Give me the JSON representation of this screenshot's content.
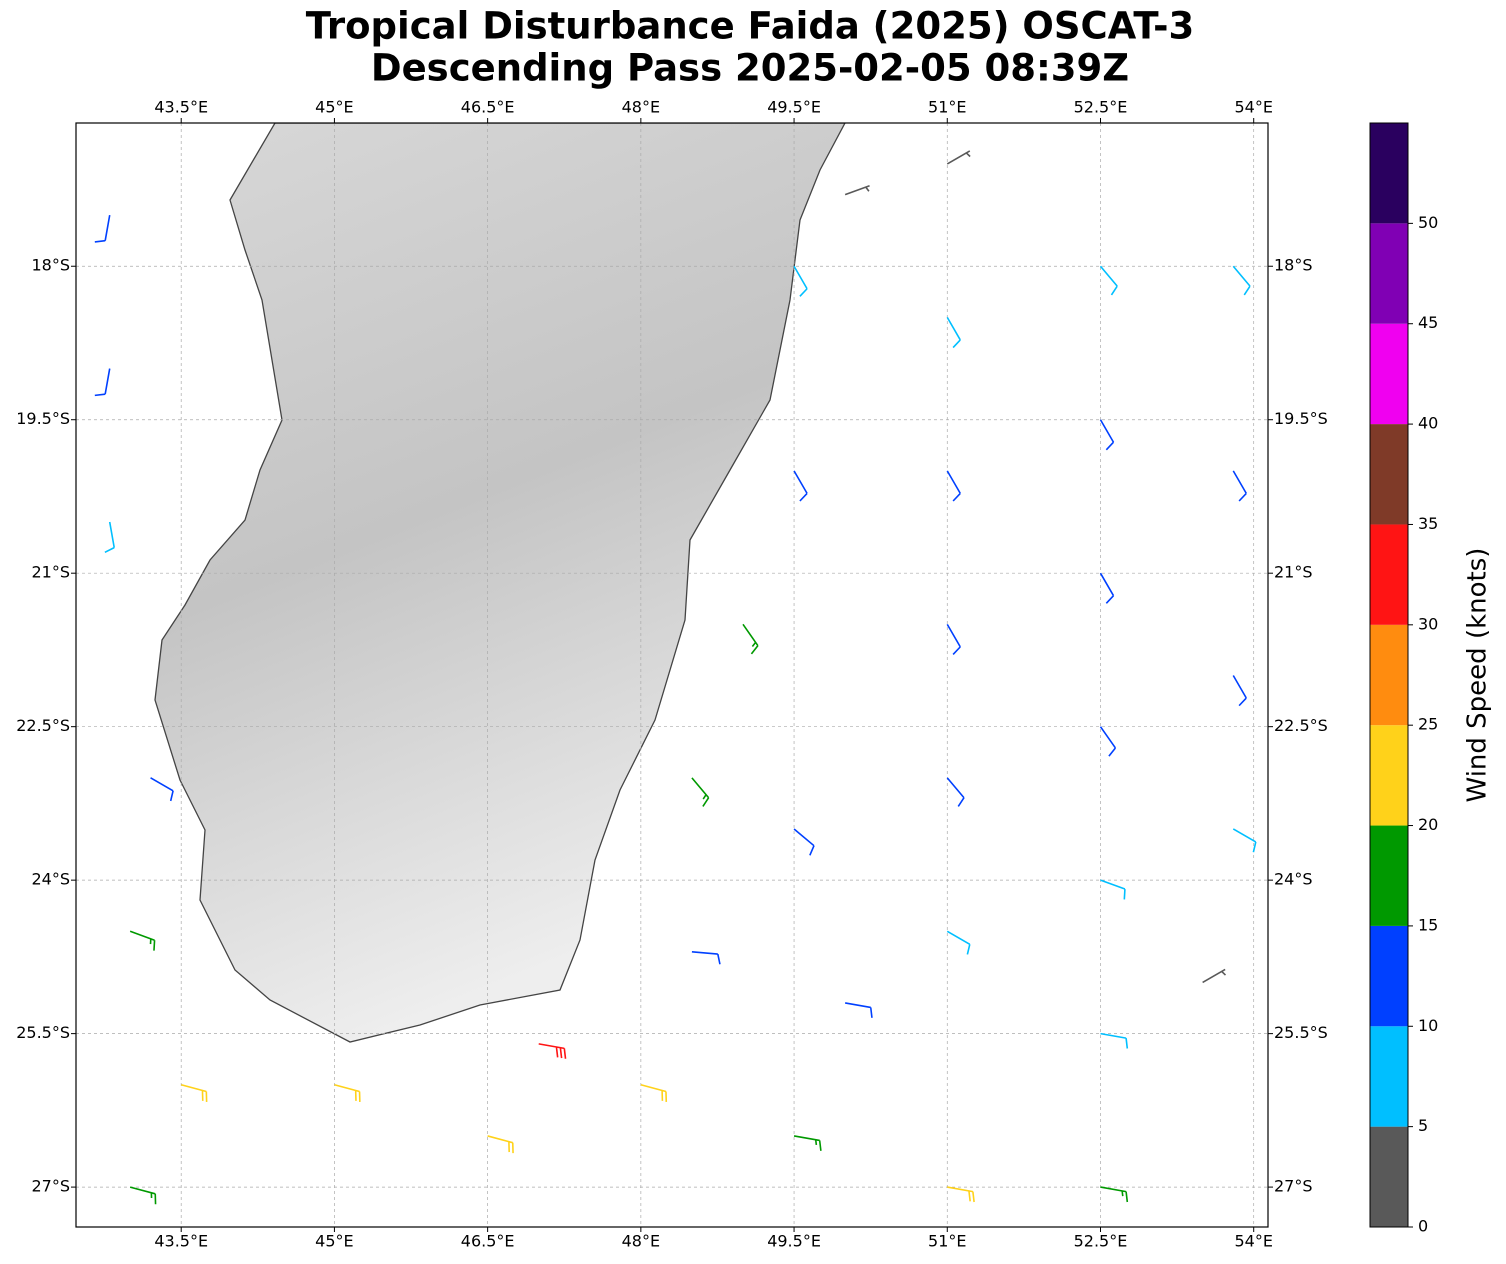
{
  "chart_data": {
    "type": "barbs",
    "title": [
      "Tropical Disturbance Faida (2025) OSCAT-3",
      "Descending Pass 2025-02-05 08:39Z"
    ],
    "xlim": [
      42.47,
      54.14
    ],
    "ylim": [
      -27.39,
      -16.6
    ],
    "xticks": [
      {
        "value": 43.5,
        "label": "43.5°E"
      },
      {
        "value": 45,
        "label": "45°E"
      },
      {
        "value": 46.5,
        "label": "46.5°E"
      },
      {
        "value": 48,
        "label": "48°E"
      },
      {
        "value": 49.5,
        "label": "49.5°E"
      },
      {
        "value": 51,
        "label": "51°E"
      },
      {
        "value": 52.5,
        "label": "52.5°E"
      },
      {
        "value": 54,
        "label": "54°E"
      }
    ],
    "yticks": [
      {
        "value": -18,
        "label": "18°S"
      },
      {
        "value": -19.5,
        "label": "19.5°S"
      },
      {
        "value": -21,
        "label": "21°S"
      },
      {
        "value": -22.5,
        "label": "22.5°S"
      },
      {
        "value": -24,
        "label": "24°S"
      },
      {
        "value": -25.5,
        "label": "25.5°S"
      },
      {
        "value": -27,
        "label": "27°S"
      }
    ],
    "grid": true,
    "colorbar": {
      "label": "Wind Speed (knots)",
      "bounds": [
        0,
        5,
        10,
        15,
        20,
        25,
        30,
        35,
        40,
        45,
        50,
        55
      ],
      "colors": [
        "#595959",
        "#00bfff",
        "#0040ff",
        "#009900",
        "#ffd21a",
        "#ff8c0f",
        "#ff1414",
        "#7f3a28",
        "#f000f0",
        "#8000b4",
        "#2a005f"
      ],
      "ticks": [
        0,
        5,
        10,
        15,
        20,
        25,
        30,
        35,
        40,
        45,
        50
      ]
    },
    "wind_barbs": [
      {
        "lon": 42.8,
        "lat": -17.5,
        "speed": 12,
        "direction": 190
      },
      {
        "lon": 42.8,
        "lat": -19,
        "speed": 12,
        "direction": 190
      },
      {
        "lon": 42.8,
        "lat": -20.5,
        "speed": 8,
        "direction": 170
      },
      {
        "lon": 43.2,
        "lat": -23,
        "speed": 12,
        "direction": 120
      },
      {
        "lon": 43,
        "lat": -24.5,
        "speed": 17,
        "direction": 110
      },
      {
        "lon": 43.5,
        "lat": -26,
        "speed": 22,
        "direction": 105
      },
      {
        "lon": 43,
        "lat": -27,
        "speed": 17,
        "direction": 105
      },
      {
        "lon": 45,
        "lat": -26,
        "speed": 22,
        "direction": 105
      },
      {
        "lon": 46.5,
        "lat": -26.5,
        "speed": 22,
        "direction": 105
      },
      {
        "lon": 47,
        "lat": -25.6,
        "speed": 30,
        "direction": 100
      },
      {
        "lon": 48,
        "lat": -26,
        "speed": 22,
        "direction": 105
      },
      {
        "lon": 49.5,
        "lat": -26.5,
        "speed": 17,
        "direction": 100
      },
      {
        "lon": 51,
        "lat": -27,
        "speed": 22,
        "direction": 100
      },
      {
        "lon": 52.5,
        "lat": -27,
        "speed": 17,
        "direction": 100
      },
      {
        "lon": 48.5,
        "lat": -24.7,
        "speed": 12,
        "direction": 95
      },
      {
        "lon": 50,
        "lat": -25.2,
        "speed": 12,
        "direction": 100
      },
      {
        "lon": 49.5,
        "lat": -18,
        "speed": 8,
        "direction": 150
      },
      {
        "lon": 49.5,
        "lat": -20,
        "speed": 12,
        "direction": 150
      },
      {
        "lon": 49,
        "lat": -21.5,
        "speed": 17,
        "direction": 145
      },
      {
        "lon": 48.5,
        "lat": -23,
        "speed": 17,
        "direction": 140
      },
      {
        "lon": 49.5,
        "lat": -23.5,
        "speed": 12,
        "direction": 130
      },
      {
        "lon": 51,
        "lat": -18.5,
        "speed": 8,
        "direction": 150
      },
      {
        "lon": 51,
        "lat": -20,
        "speed": 12,
        "direction": 150
      },
      {
        "lon": 51,
        "lat": -21.5,
        "speed": 12,
        "direction": 150
      },
      {
        "lon": 51,
        "lat": -23,
        "speed": 12,
        "direction": 140
      },
      {
        "lon": 51,
        "lat": -24.5,
        "speed": 8,
        "direction": 120
      },
      {
        "lon": 52.5,
        "lat": -18,
        "speed": 8,
        "direction": 140
      },
      {
        "lon": 52.5,
        "lat": -19.5,
        "speed": 12,
        "direction": 150
      },
      {
        "lon": 52.5,
        "lat": -21,
        "speed": 12,
        "direction": 150
      },
      {
        "lon": 52.5,
        "lat": -22.5,
        "speed": 12,
        "direction": 145
      },
      {
        "lon": 52.5,
        "lat": -24,
        "speed": 8,
        "direction": 110
      },
      {
        "lon": 52.5,
        "lat": -25.5,
        "speed": 8,
        "direction": 100
      },
      {
        "lon": 53.8,
        "lat": -18,
        "speed": 8,
        "direction": 140
      },
      {
        "lon": 53.8,
        "lat": -20,
        "speed": 12,
        "direction": 150
      },
      {
        "lon": 53.8,
        "lat": -22,
        "speed": 12,
        "direction": 150
      },
      {
        "lon": 53.8,
        "lat": -23.5,
        "speed": 8,
        "direction": 120
      },
      {
        "lon": 53.5,
        "lat": -25,
        "speed": 3,
        "direction": 60
      },
      {
        "lon": 51,
        "lat": -17,
        "speed": 3,
        "direction": 60
      },
      {
        "lon": 50,
        "lat": -17.3,
        "speed": 3,
        "direction": 70
      }
    ]
  }
}
